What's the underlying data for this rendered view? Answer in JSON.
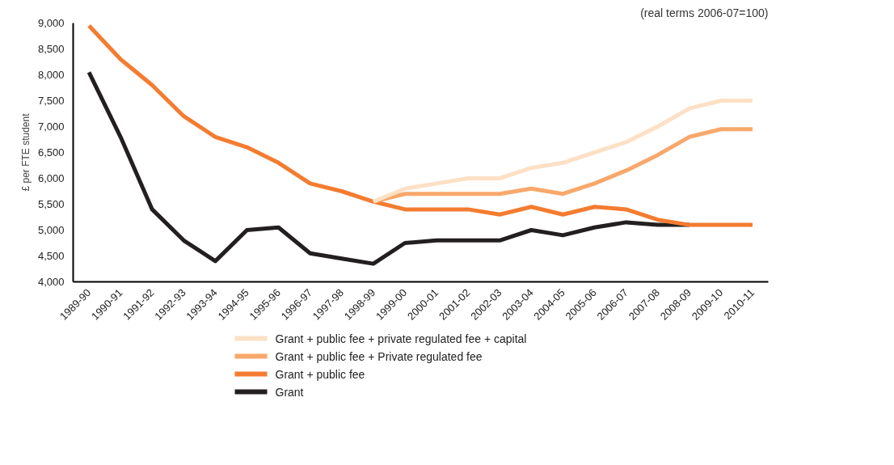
{
  "chart_data": {
    "type": "line",
    "ylabel": "£ per FTE student",
    "annotations": [
      "(real terms 2006-07=100)"
    ],
    "categories": [
      "1989-90",
      "1990-91",
      "1991-92",
      "1992-93",
      "1993-94",
      "1994-95",
      "1995-96",
      "1996-97",
      "1997-98",
      "1998-99",
      "1999-00",
      "2000-01",
      "2001-02",
      "2002-03",
      "2003-04",
      "2004-05",
      "2005-06",
      "2006-07",
      "2007-08",
      "2008-09",
      "2009-10",
      "2010-11"
    ],
    "series": [
      {
        "name": "Grant + public fee + private regulated fee + capital",
        "color": "#fde0c5",
        "values": [
          null,
          null,
          null,
          null,
          null,
          null,
          null,
          null,
          null,
          5550,
          5800,
          5900,
          6000,
          6000,
          6200,
          6300,
          6500,
          6700,
          7000,
          7350,
          7500,
          7500
        ]
      },
      {
        "name": "Grant + public fee + Private regulated fee",
        "color": "#f8a86b",
        "values": [
          null,
          null,
          null,
          null,
          null,
          null,
          null,
          null,
          null,
          5550,
          5700,
          5700,
          5700,
          5700,
          5800,
          5700,
          5900,
          6150,
          6450,
          6800,
          6950,
          6950
        ]
      },
      {
        "name": "Grant + public fee",
        "color": "#f47c30",
        "values": [
          8950,
          8300,
          7800,
          7200,
          6800,
          6600,
          6300,
          5900,
          5750,
          5550,
          5400,
          5400,
          5400,
          5300,
          5450,
          5300,
          5450,
          5400,
          5200,
          5100,
          5100,
          5100
        ]
      },
      {
        "name": "Grant",
        "color": "#231f20",
        "values": [
          8050,
          6800,
          5400,
          4800,
          4400,
          5000,
          5050,
          4550,
          4450,
          4350,
          4750,
          4800,
          4800,
          4800,
          5000,
          4900,
          5050,
          5150,
          5100,
          5100,
          null,
          null
        ]
      }
    ],
    "ylim": [
      4000,
      9000
    ],
    "yticks": [
      {
        "value": 4000,
        "label": "4,000"
      },
      {
        "value": 4500,
        "label": "4,500"
      },
      {
        "value": 5000,
        "label": "5,000"
      },
      {
        "value": 5500,
        "label": "5,500"
      },
      {
        "value": 6000,
        "label": "6,000"
      },
      {
        "value": 6500,
        "label": "6,500"
      },
      {
        "value": 7000,
        "label": "7,000"
      },
      {
        "value": 7500,
        "label": "7,500"
      },
      {
        "value": 8000,
        "label": "8,000"
      },
      {
        "value": 8500,
        "label": "8,500"
      },
      {
        "value": 9000,
        "label": "9,000"
      }
    ],
    "grid": false,
    "legend": "bottom",
    "line_style": "solid",
    "marker": "none"
  }
}
